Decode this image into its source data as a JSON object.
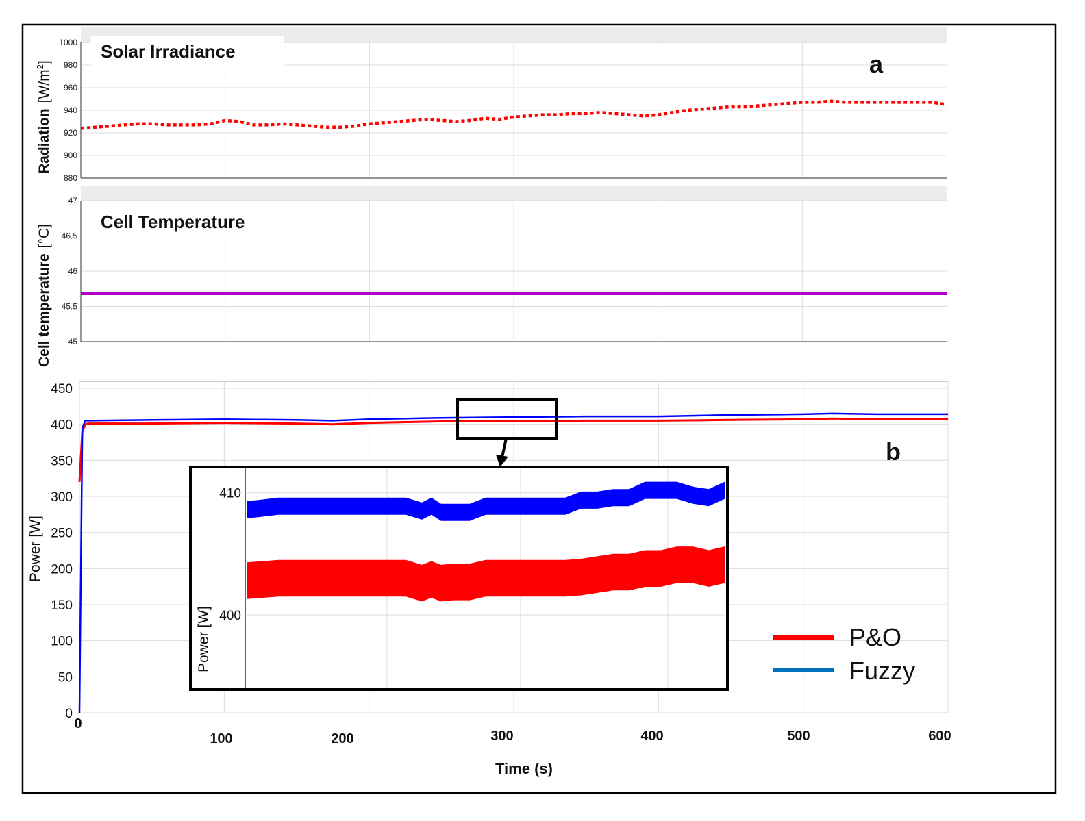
{
  "colors": {
    "po": "#ff0000",
    "fuzzy_main": "#0000ff",
    "fuzzy_legend": "#0070c0",
    "temperature": "#b000c8",
    "irradiance": "#ff0000",
    "grid": "#dcdcdc"
  },
  "chart_data": [
    {
      "id": "irradiance",
      "type": "line",
      "panel_letter": "a",
      "title": "Solar Irradiance",
      "ylabel_main": "Radiation",
      "ylabel_unit": "[W/m",
      "ylabel_unit_sup": "2",
      "ylabel_unit_end": "]",
      "ylim": [
        880,
        1000
      ],
      "yticks": [
        "880",
        "900",
        "920",
        "940",
        "960",
        "980",
        "1000"
      ],
      "xlim": [
        0,
        600
      ],
      "series": [
        {
          "name": "Radiation",
          "line_style": "dotted",
          "x": [
            0,
            10,
            20,
            30,
            40,
            50,
            60,
            70,
            80,
            90,
            100,
            110,
            120,
            130,
            140,
            150,
            160,
            170,
            180,
            190,
            200,
            210,
            220,
            230,
            240,
            250,
            260,
            270,
            280,
            290,
            300,
            310,
            320,
            330,
            340,
            350,
            360,
            370,
            380,
            390,
            400,
            410,
            420,
            430,
            440,
            450,
            460,
            470,
            480,
            490,
            500,
            510,
            520,
            530,
            540,
            550,
            560,
            570,
            580,
            590,
            600
          ],
          "values": [
            924,
            925,
            926,
            927,
            928,
            928,
            927,
            927,
            927,
            928,
            931,
            930,
            927,
            927,
            928,
            927,
            926,
            925,
            925,
            926,
            928,
            929,
            930,
            931,
            932,
            931,
            930,
            931,
            933,
            932,
            934,
            935,
            936,
            936,
            937,
            937,
            938,
            937,
            936,
            935,
            936,
            938,
            940,
            941,
            942,
            943,
            943,
            944,
            945,
            946,
            947,
            947,
            948,
            947,
            947,
            947,
            947,
            947,
            947,
            947,
            945
          ]
        }
      ]
    },
    {
      "id": "temperature",
      "type": "line",
      "title": "Cell Temperature",
      "ylabel_main": "Cell temperature",
      "ylabel_unit": "[°C]",
      "ylim": [
        45,
        47
      ],
      "yticks": [
        "45",
        "45.5",
        "46",
        "46.5",
        "47"
      ],
      "xlim": [
        0,
        600
      ],
      "series": [
        {
          "name": "Cell temperature",
          "x": [
            0,
            600
          ],
          "values": [
            45.68,
            45.68
          ]
        }
      ]
    },
    {
      "id": "power",
      "type": "line",
      "panel_letter": "b",
      "ylabel": "Power [W]",
      "xlabel": "Time (s)",
      "ylim": [
        0,
        450
      ],
      "xlim": [
        0,
        600
      ],
      "yticks": [
        "0",
        "50",
        "100",
        "150",
        "200",
        "250",
        "300",
        "350",
        "400",
        "450"
      ],
      "xticks": [
        "0",
        "100",
        "200",
        "300",
        "400",
        "500",
        "600"
      ],
      "series": [
        {
          "name": "P&O",
          "x": [
            0,
            2,
            4,
            6,
            50,
            100,
            150,
            175,
            200,
            250,
            300,
            350,
            400,
            450,
            500,
            520,
            550,
            600
          ],
          "values": [
            320,
            390,
            400,
            401,
            401,
            402,
            401,
            400,
            402,
            404,
            404,
            405,
            405,
            406,
            407,
            408,
            407,
            407
          ]
        },
        {
          "name": "Fuzzy",
          "x": [
            0,
            2,
            4,
            6,
            50,
            100,
            150,
            175,
            200,
            250,
            300,
            350,
            400,
            450,
            500,
            520,
            550,
            600
          ],
          "values": [
            0,
            395,
            405,
            405,
            406,
            407,
            406,
            405,
            407,
            409,
            410,
            411,
            411,
            413,
            414,
            415,
            414,
            414
          ]
        }
      ],
      "legend": [
        "P&O",
        "Fuzzy"
      ],
      "inset": {
        "ylabel": "Power [W]",
        "ylim": [
          394,
          412
        ],
        "yticks": [
          "400",
          "410"
        ],
        "x": [
          0,
          20,
          40,
          60,
          80,
          100,
          110,
          116,
          122,
          130,
          140,
          150,
          160,
          170,
          180,
          190,
          200,
          210,
          220,
          230,
          240,
          250,
          260,
          270,
          280,
          290,
          300
        ],
        "po_mid": [
          402.8,
          403,
          403,
          403,
          403,
          403,
          402.6,
          402.9,
          402.6,
          402.7,
          402.7,
          403,
          403,
          403,
          403,
          403,
          403,
          403.1,
          403.3,
          403.5,
          403.5,
          403.8,
          403.8,
          404.1,
          404.1,
          403.8,
          404.1
        ],
        "po_half_width": 1.5,
        "fuzzy_mid": [
          408.6,
          408.9,
          408.9,
          408.9,
          408.9,
          408.9,
          408.5,
          408.9,
          408.4,
          408.4,
          408.4,
          408.9,
          408.9,
          408.9,
          408.9,
          408.9,
          408.9,
          409.4,
          409.4,
          409.6,
          409.6,
          410.2,
          410.2,
          410.2,
          409.8,
          409.6,
          410.2
        ],
        "fuzzy_half_width": 0.7
      }
    }
  ]
}
